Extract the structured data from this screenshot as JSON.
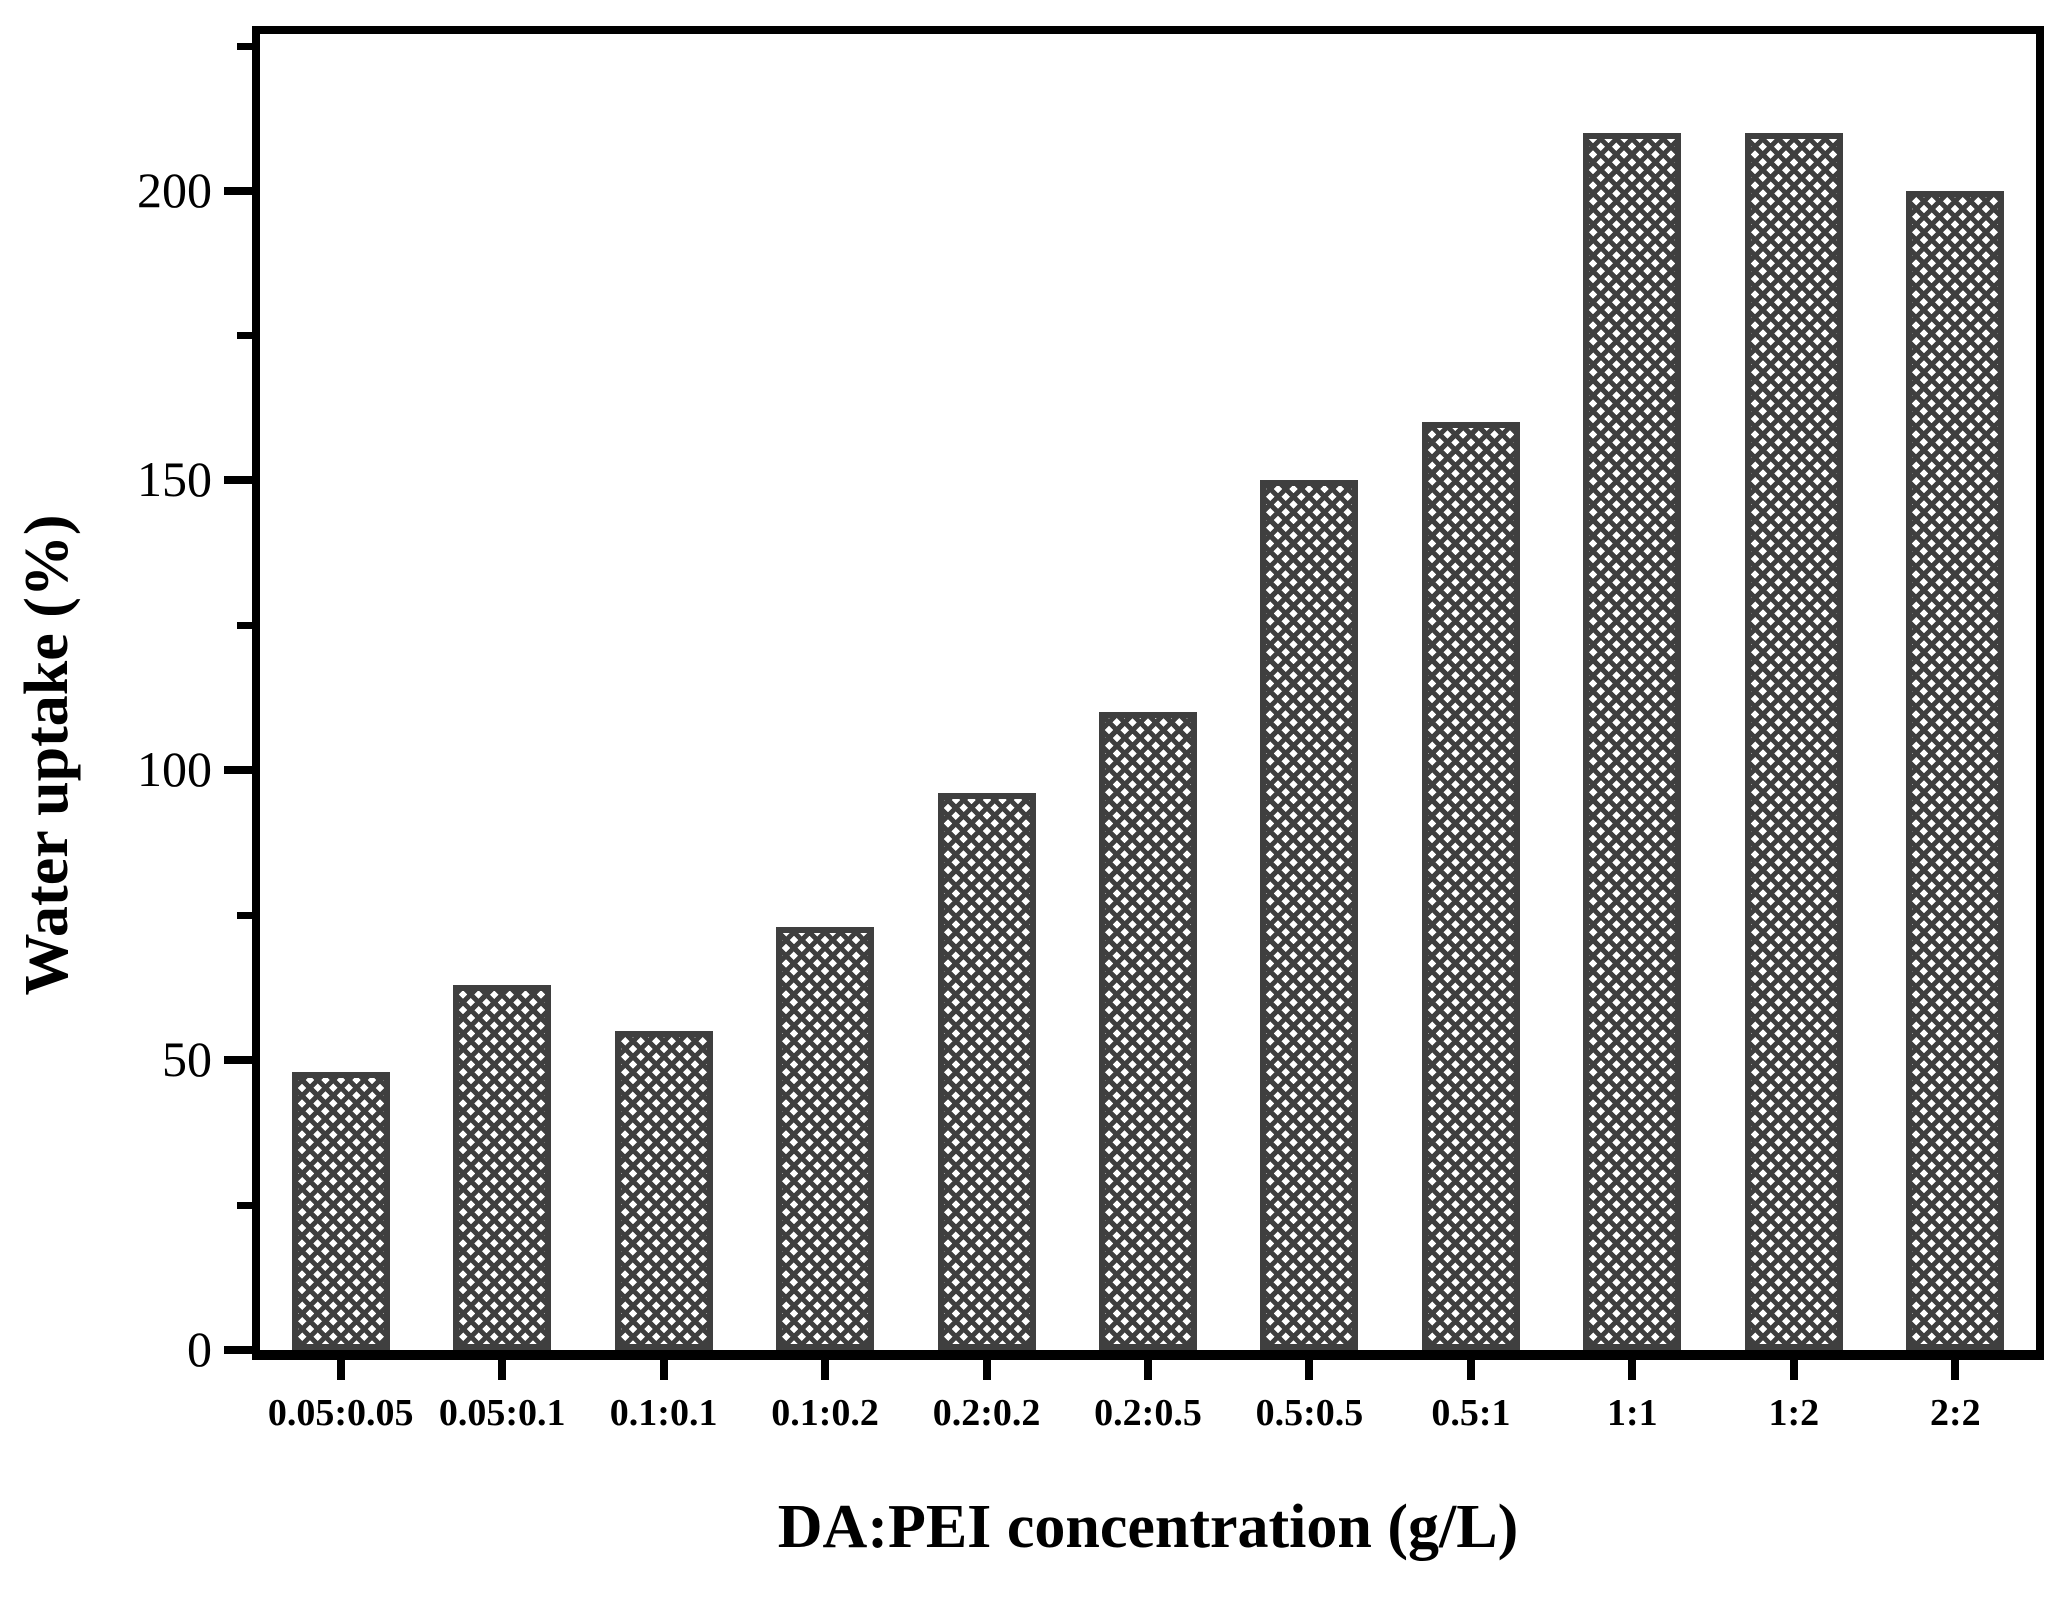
{
  "figure": {
    "background": "#ffffff"
  },
  "chart_data": {
    "type": "bar",
    "title": "",
    "categories": [
      "0.05:0.05",
      "0.05:0.1",
      "0.1:0.1",
      "0.1:0.2",
      "0.2:0.2",
      "0.2:0.5",
      "0.5:0.5",
      "0.5:1",
      "1:1",
      "1:2",
      "2:2"
    ],
    "values": [
      48,
      63,
      55,
      73,
      96,
      110,
      150,
      160,
      210,
      210,
      200
    ],
    "xlabel": "DA:PEI concentration (g/L)",
    "ylabel": "Water uptake (%)",
    "ylim": [
      0,
      227
    ],
    "yticks_major": [
      0,
      50,
      100,
      150,
      200
    ],
    "yticks_minor": [
      25,
      75,
      125,
      175,
      225
    ],
    "grid": false,
    "legend": "none",
    "bar_pattern": "diagonal-crosshatch",
    "bar_color": "#3f3f3f",
    "axis_color": "#000000",
    "background_color": "#ffffff"
  }
}
